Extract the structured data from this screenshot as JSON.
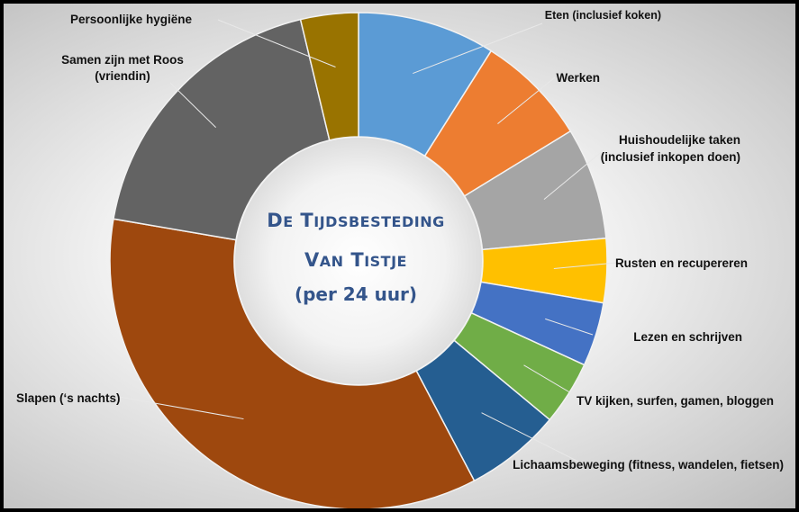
{
  "chart_data": {
    "type": "pie",
    "variant": "donut",
    "title_line1": "De tijdsbesteding",
    "title_line2": "van Tistje",
    "subtitle": "(per 24 uur)",
    "unit": "uur",
    "total": 24,
    "categories": [
      "Eten (inclusief koken)",
      "Werken",
      "Huishoudelijke taken (inclusief inkopen doen)",
      "Rusten en recupereren",
      "Lezen en schrijven",
      "TV kijken, surfen, gamen, bloggen",
      "Lichaamsbeweging (fitness, wandelen, fietsen)",
      "Slapen (‘s nachts)",
      "Samen zijn met Roos (vriendin)",
      "Persoonlijke hygiëne"
    ],
    "values": [
      2.15,
      1.75,
      1.75,
      1.0,
      1.0,
      1.0,
      1.5,
      8.5,
      4.45,
      0.9
    ],
    "colors": [
      "#5b9bd5",
      "#ed7d31",
      "#a5a5a5",
      "#ffc000",
      "#4472c4",
      "#70ad47",
      "#255e91",
      "#9e480e",
      "#636363",
      "#997300"
    ],
    "legend": "none",
    "labels_position": "outside-with-leader-lines"
  }
}
